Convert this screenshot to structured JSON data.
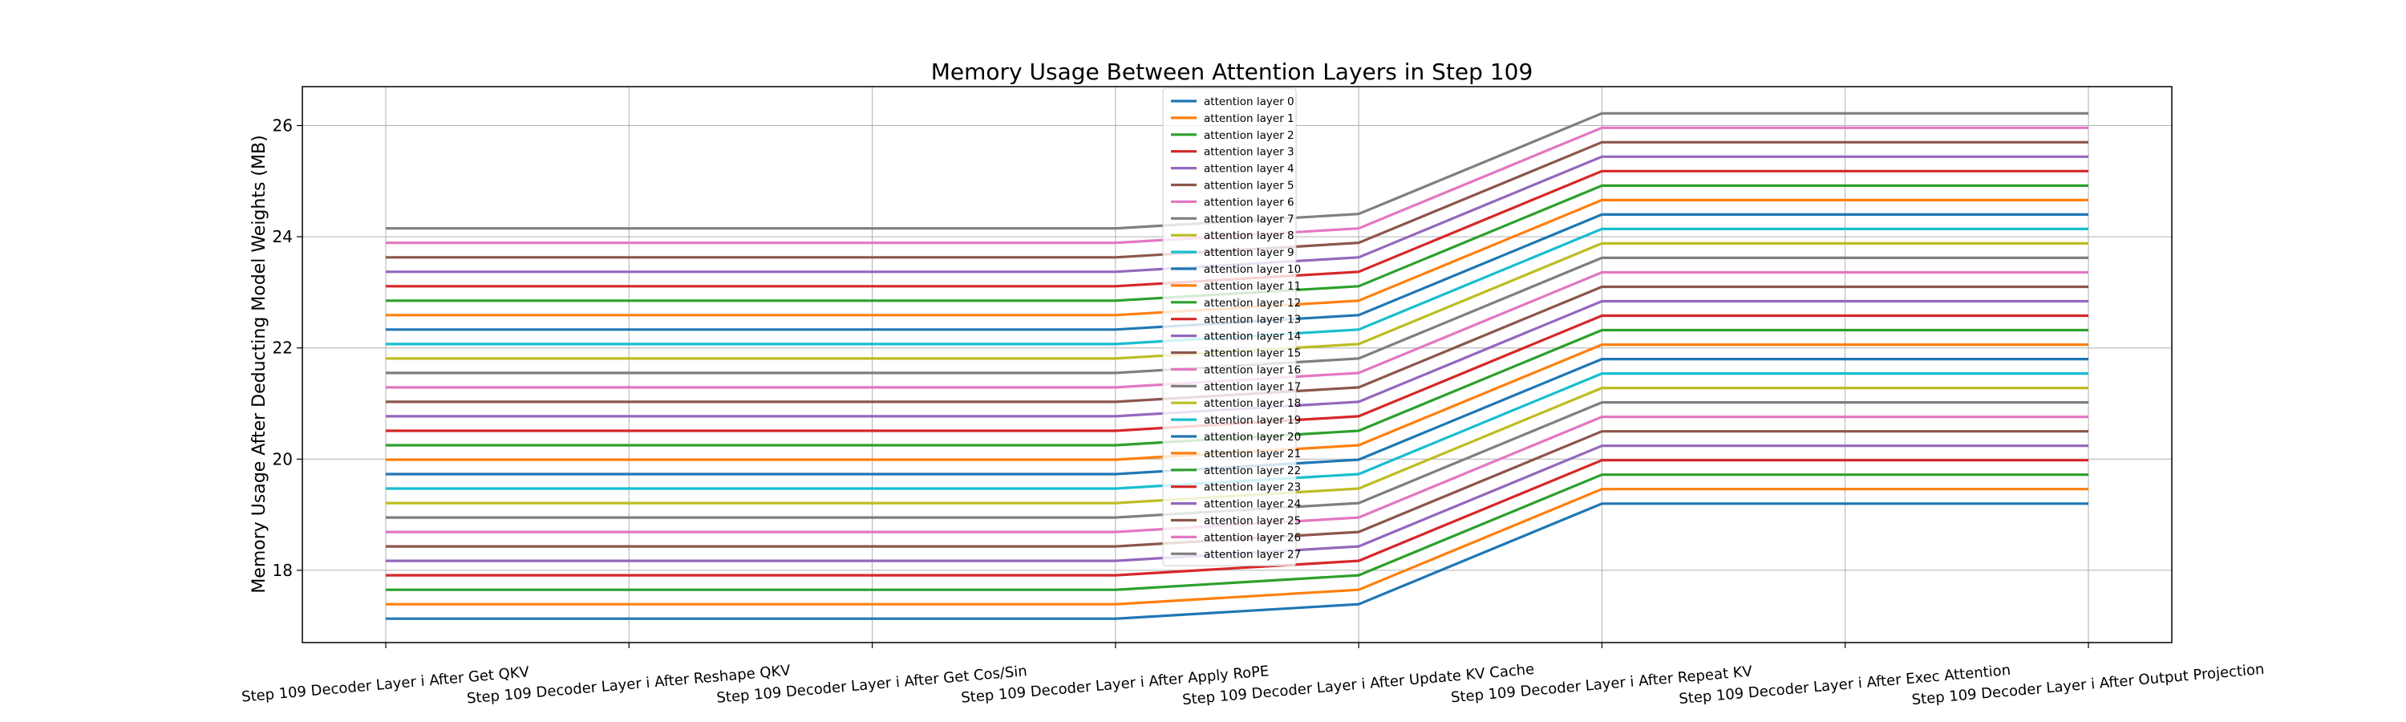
{
  "chart_data": {
    "type": "line",
    "title": "Memory Usage Between Attention Layers in Step 109",
    "xlabel": "",
    "ylabel": "Memory Usage After Deducting Model Weights (MB)",
    "ylim": [
      16.7,
      26.7
    ],
    "yticks": [
      18,
      20,
      22,
      24,
      26
    ],
    "grid": true,
    "legend_position": "top-center",
    "categories": [
      "Step 109 Decoder Layer i After Get QKV",
      "Step 109 Decoder Layer i After Reshape QKV",
      "Step 109 Decoder Layer i After Get Cos/Sin",
      "Step 109 Decoder Layer i After Apply RoPE",
      "Step 109 Decoder Layer i After Update KV Cache",
      "Step 109 Decoder Layer i After Repeat KV",
      "Step 109 Decoder Layer i After Exec Attention",
      "Step 109 Decoder Layer i After Output Projection"
    ],
    "colors": [
      "#1f77b4",
      "#ff7f0e",
      "#2ca02c",
      "#d62728",
      "#9467bd",
      "#8c564b",
      "#e377c2",
      "#7f7f7f",
      "#bcbd22",
      "#17becf"
    ],
    "series": [
      {
        "name": "attention layer 0",
        "values": [
          17.13,
          17.13,
          17.13,
          17.13,
          17.39,
          19.2,
          19.2,
          19.2
        ]
      },
      {
        "name": "attention layer 1",
        "values": [
          17.39,
          17.39,
          17.39,
          17.39,
          17.65,
          19.46,
          19.46,
          19.46
        ]
      },
      {
        "name": "attention layer 2",
        "values": [
          17.65,
          17.65,
          17.65,
          17.65,
          17.91,
          19.72,
          19.72,
          19.72
        ]
      },
      {
        "name": "attention layer 3",
        "values": [
          17.91,
          17.91,
          17.91,
          17.91,
          18.17,
          19.98,
          19.98,
          19.98
        ]
      },
      {
        "name": "attention layer 4",
        "values": [
          18.17,
          18.17,
          18.17,
          18.17,
          18.43,
          20.24,
          20.24,
          20.24
        ]
      },
      {
        "name": "attention layer 5",
        "values": [
          18.43,
          18.43,
          18.43,
          18.43,
          18.69,
          20.5,
          20.5,
          20.5
        ]
      },
      {
        "name": "attention layer 6",
        "values": [
          18.69,
          18.69,
          18.69,
          18.69,
          18.95,
          20.76,
          20.76,
          20.76
        ]
      },
      {
        "name": "attention layer 7",
        "values": [
          18.95,
          18.95,
          18.95,
          18.95,
          19.21,
          21.02,
          21.02,
          21.02
        ]
      },
      {
        "name": "attention layer 8",
        "values": [
          19.21,
          19.21,
          19.21,
          19.21,
          19.47,
          21.28,
          21.28,
          21.28
        ]
      },
      {
        "name": "attention layer 9",
        "values": [
          19.47,
          19.47,
          19.47,
          19.47,
          19.73,
          21.54,
          21.54,
          21.54
        ]
      },
      {
        "name": "attention layer 10",
        "values": [
          19.73,
          19.73,
          19.73,
          19.73,
          19.99,
          21.8,
          21.8,
          21.8
        ]
      },
      {
        "name": "attention layer 11",
        "values": [
          19.99,
          19.99,
          19.99,
          19.99,
          20.25,
          22.06,
          22.06,
          22.06
        ]
      },
      {
        "name": "attention layer 12",
        "values": [
          20.25,
          20.25,
          20.25,
          20.25,
          20.51,
          22.32,
          22.32,
          22.32
        ]
      },
      {
        "name": "attention layer 13",
        "values": [
          20.51,
          20.51,
          20.51,
          20.51,
          20.77,
          22.58,
          22.58,
          22.58
        ]
      },
      {
        "name": "attention layer 14",
        "values": [
          20.77,
          20.77,
          20.77,
          20.77,
          21.03,
          22.84,
          22.84,
          22.84
        ]
      },
      {
        "name": "attention layer 15",
        "values": [
          21.03,
          21.03,
          21.03,
          21.03,
          21.29,
          23.1,
          23.1,
          23.1
        ]
      },
      {
        "name": "attention layer 16",
        "values": [
          21.29,
          21.29,
          21.29,
          21.29,
          21.55,
          23.36,
          23.36,
          23.36
        ]
      },
      {
        "name": "attention layer 17",
        "values": [
          21.55,
          21.55,
          21.55,
          21.55,
          21.81,
          23.62,
          23.62,
          23.62
        ]
      },
      {
        "name": "attention layer 18",
        "values": [
          21.81,
          21.81,
          21.81,
          21.81,
          22.07,
          23.88,
          23.88,
          23.88
        ]
      },
      {
        "name": "attention layer 19",
        "values": [
          22.07,
          22.07,
          22.07,
          22.07,
          22.33,
          24.14,
          24.14,
          24.14
        ]
      },
      {
        "name": "attention layer 20",
        "values": [
          22.33,
          22.33,
          22.33,
          22.33,
          22.59,
          24.4,
          24.4,
          24.4
        ]
      },
      {
        "name": "attention layer 21",
        "values": [
          22.59,
          22.59,
          22.59,
          22.59,
          22.85,
          24.66,
          24.66,
          24.66
        ]
      },
      {
        "name": "attention layer 22",
        "values": [
          22.85,
          22.85,
          22.85,
          22.85,
          23.11,
          24.92,
          24.92,
          24.92
        ]
      },
      {
        "name": "attention layer 23",
        "values": [
          23.11,
          23.11,
          23.11,
          23.11,
          23.37,
          25.18,
          25.18,
          25.18
        ]
      },
      {
        "name": "attention layer 24",
        "values": [
          23.37,
          23.37,
          23.37,
          23.37,
          23.63,
          25.44,
          25.44,
          25.44
        ]
      },
      {
        "name": "attention layer 25",
        "values": [
          23.63,
          23.63,
          23.63,
          23.63,
          23.89,
          25.7,
          25.7,
          25.7
        ]
      },
      {
        "name": "attention layer 26",
        "values": [
          23.89,
          23.89,
          23.89,
          23.89,
          24.15,
          25.96,
          25.96,
          25.96
        ]
      },
      {
        "name": "attention layer 27",
        "values": [
          24.15,
          24.15,
          24.15,
          24.15,
          24.41,
          26.22,
          26.22,
          26.22
        ]
      }
    ]
  }
}
